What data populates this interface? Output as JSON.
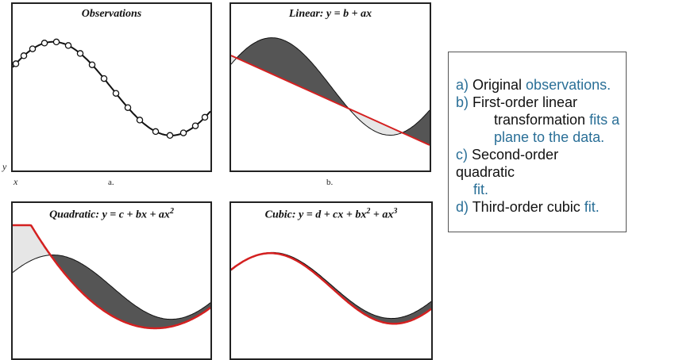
{
  "colors": {
    "accent": "#2a6f97",
    "fit_line": "#d42020",
    "curve": "#111111",
    "shade_dark": "#555555",
    "shade_light": "#e6e6e6"
  },
  "panels": {
    "a": {
      "title": "Observations",
      "label": "a."
    },
    "b": {
      "title": "Linear: y = b + ax",
      "label": "b."
    },
    "c": {
      "title_main": "Quadratic: y = c + bx + ax",
      "title_sup": "2"
    },
    "d": {
      "title_main": "Cubic: y = d + cx + bx",
      "title_sup1": "2",
      "title_mid": " + ax",
      "title_sup2": "3"
    }
  },
  "axis": {
    "y": "y",
    "x": "x"
  },
  "legend": {
    "a_prefix": "a) ",
    "a_text": "Original ",
    "a_accent": "observations.",
    "b_prefix": "b) ",
    "b_text1": "First-order linear",
    "b_text2": "transformation ",
    "b_accent2": "fits a",
    "b_accent3": "plane to the data.",
    "c_prefix": "c) ",
    "c_text1": "Second-order",
    "c_text2": "quadratic",
    "c_accent3": "fit.",
    "d_prefix": "d) ",
    "d_text": "Third-order cubic ",
    "d_accent": "fit."
  }
}
